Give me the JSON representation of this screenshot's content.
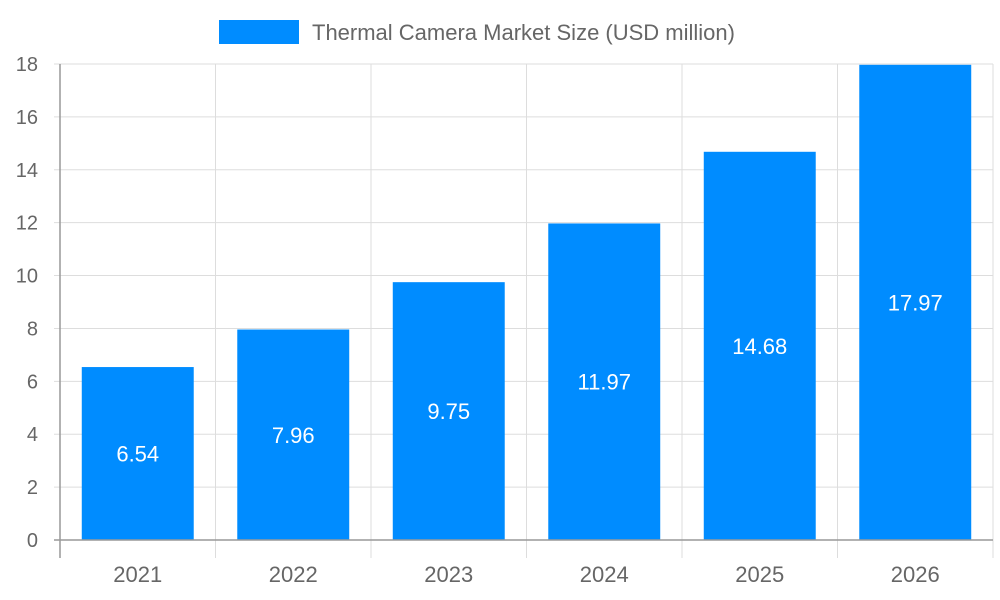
{
  "chart_data": {
    "type": "bar",
    "title": "",
    "xlabel": "",
    "ylabel": "",
    "categories": [
      "2021",
      "2022",
      "2023",
      "2024",
      "2025",
      "2026"
    ],
    "series": [
      {
        "name": "Thermal Camera Market Size (USD million)",
        "values": [
          6.54,
          7.96,
          9.75,
          11.97,
          14.68,
          17.97
        ],
        "color": "#008cff"
      }
    ],
    "data_labels": [
      "6.54",
      "7.96",
      "9.75",
      "11.97",
      "14.68",
      "17.97"
    ],
    "ylim": [
      0,
      18
    ],
    "yticks": [
      "0",
      "2",
      "4",
      "6",
      "8",
      "10",
      "12",
      "14",
      "16",
      "18"
    ],
    "grid": true,
    "legend_position": "top"
  }
}
